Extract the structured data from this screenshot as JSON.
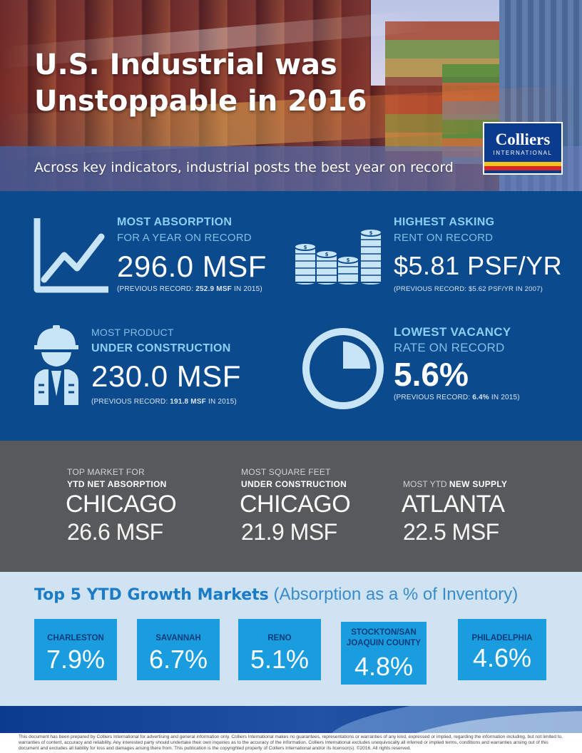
{
  "hero": {
    "title_line1": "U.S. Industrial was",
    "title_line2": "Unstoppable in 2016",
    "subtitle": "Across key indicators, industrial posts the best year on record",
    "logo_name": "Colliers",
    "logo_sub": "INTERNATIONAL"
  },
  "stats": {
    "absorption": {
      "heading": "MOST ABSORPTION",
      "sub": "FOR A YEAR ON RECORD",
      "value": "296.0 MSF",
      "prev_pre": "(PREVIOUS RECORD: ",
      "prev_val": "252.9 MSF",
      "prev_post": " IN 2015)"
    },
    "rent": {
      "heading": "HIGHEST ASKING",
      "sub": "RENT ON RECORD",
      "value": "$5.81 PSF/YR",
      "prev": "(PREVIOUS RECORD: $5.62 PSF/YR IN 2007)"
    },
    "construction": {
      "sub": "MOST PRODUCT",
      "heading": "UNDER CONSTRUCTION",
      "value": "230.0 MSF",
      "prev_pre": "(PREVIOUS RECORD: ",
      "prev_val": "191.8 MSF",
      "prev_post": " IN 2015)"
    },
    "vacancy": {
      "heading": "LOWEST VACANCY",
      "sub": "RATE ON RECORD",
      "value": "5.6%",
      "prev_pre": "(PREVIOUS RECORD: ",
      "prev_val": "6.4%",
      "prev_post": " IN 2015)",
      "pie_fraction": 0.25
    }
  },
  "markets": [
    {
      "light": "TOP MARKET FOR",
      "bold": "YTD NET ABSORPTION",
      "city": "CHICAGO",
      "value": "26.6 MSF"
    },
    {
      "light": "MOST SQUARE FEET",
      "bold": "UNDER CONSTRUCTION",
      "city": "CHICAGO",
      "value": "21.9 MSF"
    },
    {
      "light": "MOST YTD ",
      "bold": "NEW SUPPLY",
      "city": "ATLANTA",
      "value": "22.5 MSF"
    }
  ],
  "growth": {
    "title_bold": "Top 5 YTD Growth Markets",
    "title_light": " (Absorption as a % of Inventory)",
    "items": [
      {
        "name": "CHARLESTON",
        "pct": "7.9%"
      },
      {
        "name": "SAVANNAH",
        "pct": "6.7%"
      },
      {
        "name": "RENO",
        "pct": "5.1%"
      },
      {
        "name": "STOCKTON/SAN JOAQUIN COUNTY",
        "pct": "4.8%"
      },
      {
        "name": "PHILADELPHIA",
        "pct": "4.6%"
      }
    ]
  },
  "disclaimer": "This document has been prepared by Colliers International for advertising and general information only. Colliers International makes no guarantees, representations or warranties of any kind, expressed or implied, regarding the information including, but not limited to, warranties of content, accuracy and reliability. Any interested party should undertake their own inquiries as to the accuracy of the information. Colliers International excludes unequivocally all inferred or implied terms, conditions and warranties arising out of this document and excludes all liability for loss and damages arising there from. This publication is the copyrighted property of Colliers International and/or its licensor(s). ©2016. All rights reserved.",
  "colors": {
    "blue_section": "#0b4a8c",
    "accent_light_blue": "#8ad0f5",
    "grey_section": "#58595b",
    "light_section": "#cfe3f2",
    "market_box": "#1a9ddf"
  }
}
